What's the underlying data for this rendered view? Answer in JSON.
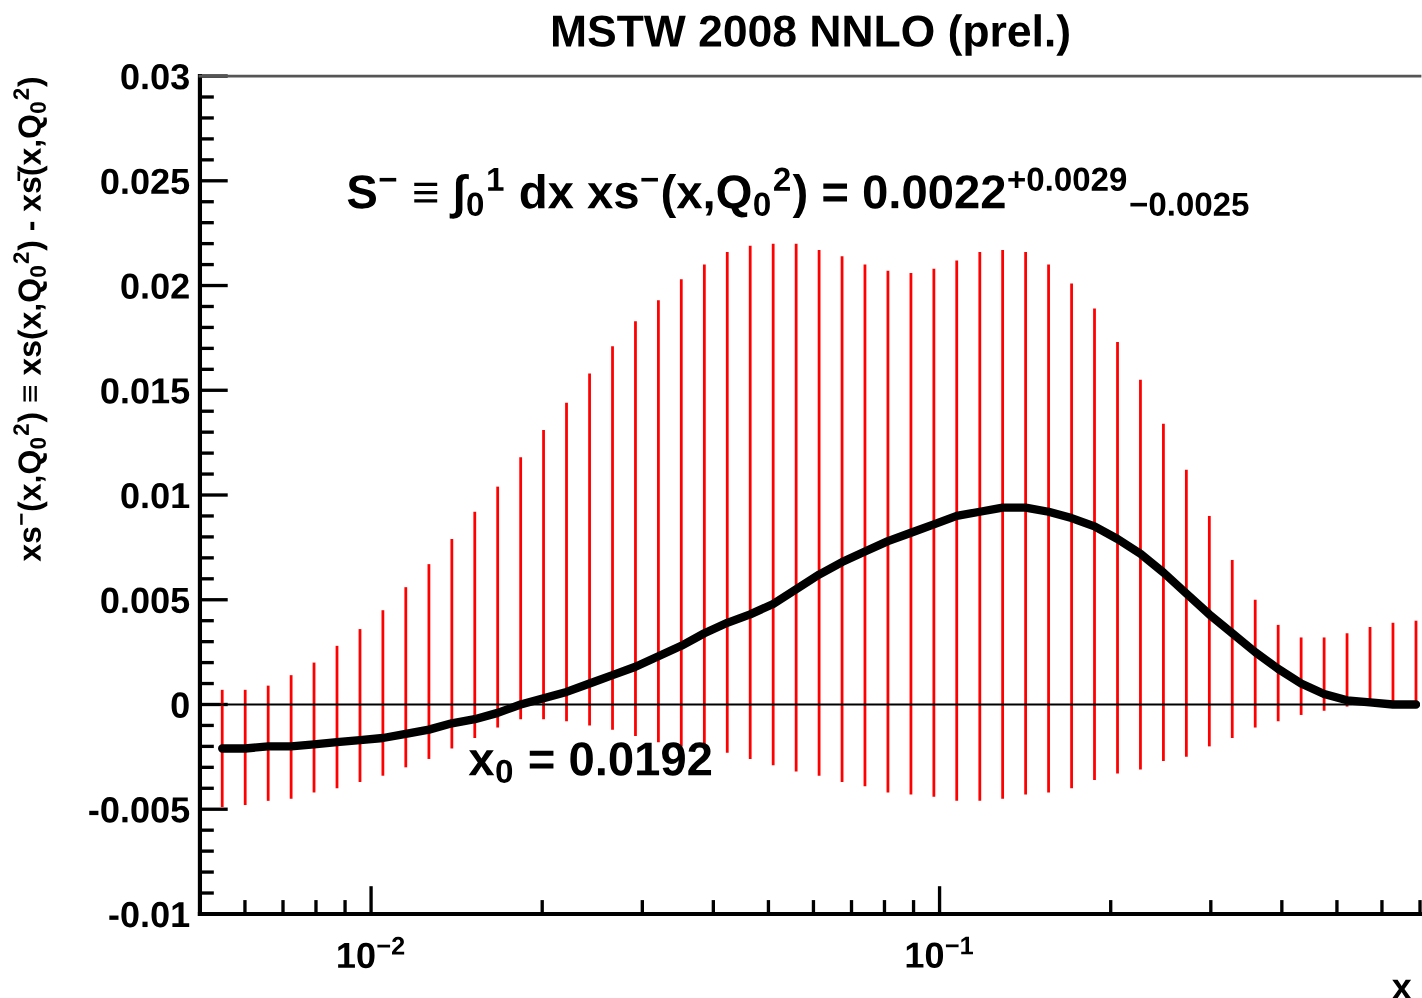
{
  "chart_data": {
    "type": "line",
    "title": "MSTW 2008 NNLO (prel.)",
    "xlabel": "x",
    "ylabel": "xs$^{−}$(x,Q$_{0}$$^{2}$) ≡ xs(x,Q$_{0}$$^{2}$) - xs̄(x,Q$_{0}$$^{2}$)",
    "annotations": [
      "S$^{−}$ ≡ ∫$_{0}$$^{1}$ dx xs$^{−}$(x,Q$_{0}$$^{2}$) = 0.0022$^{+0.0029}$$_{−0.0025}$",
      "x$_{0}$ = 0.0192"
    ],
    "log": "x",
    "xlim": [
      0.005,
      0.7
    ],
    "xticks": [
      {
        "value": 0.01,
        "label": "10$^{−2}$"
      },
      {
        "value": 0.1,
        "label": "10$^{−1}$"
      }
    ],
    "ylim": [
      -0.01,
      0.03
    ],
    "yticks": [
      -0.01,
      -0.005,
      0,
      0.005,
      0.01,
      0.015,
      0.02,
      0.025,
      0.03
    ],
    "grid": false,
    "marker": "none",
    "line_style": "solid",
    "ref_lines": [
      {
        "axis": "y",
        "value": 0,
        "color": "#000000"
      }
    ],
    "x": [
      0.005472,
      0.006006,
      0.006592,
      0.007234,
      0.007937,
      0.008711,
      0.009561,
      0.01049,
      0.01151,
      0.01264,
      0.01387,
      0.01522,
      0.0167,
      0.01833,
      0.02011,
      0.02207,
      0.02423,
      0.02659,
      0.02918,
      0.03202,
      0.03513,
      0.03857,
      0.04232,
      0.04644,
      0.05097,
      0.05594,
      0.06139,
      0.06737,
      0.07392,
      0.08113,
      0.08905,
      0.09772,
      0.1072,
      0.1177,
      0.1291,
      0.1417,
      0.1555,
      0.1707,
      0.1873,
      0.2056,
      0.2256,
      0.2476,
      0.2717,
      0.2982,
      0.3272,
      0.3591,
      0.3941,
      0.4325,
      0.4747,
      0.5209,
      0.5717,
      0.6274,
      0.6887
    ],
    "series": [
      {
        "color": "#000000",
        "values": [
          -0.0021,
          -0.0021,
          -0.002,
          -0.002,
          -0.0019,
          -0.0018,
          -0.0017,
          -0.0016,
          -0.0014,
          -0.0012,
          -0.0009,
          -0.0007,
          -0.0004,
          0.0,
          0.0003,
          0.0006,
          0.001,
          0.0014,
          0.0018,
          0.0023,
          0.0028,
          0.0034,
          0.0039,
          0.0043,
          0.0048,
          0.0055,
          0.0062,
          0.0068,
          0.0073,
          0.0078,
          0.0082,
          0.0086,
          0.009,
          0.0092,
          0.0094,
          0.0094,
          0.0092,
          0.0089,
          0.0085,
          0.0079,
          0.0072,
          0.0063,
          0.0053,
          0.0043,
          0.0034,
          0.0025,
          0.0017,
          0.001,
          0.0005,
          0.0002,
          0.0001,
          0.0,
          0.0
        ],
        "errors": [
          [
            -0.0049,
            0.0007
          ],
          [
            -0.0048,
            0.0007
          ],
          [
            -0.0046,
            0.0009
          ],
          [
            -0.0045,
            0.0014
          ],
          [
            -0.0042,
            0.002
          ],
          [
            -0.004,
            0.0028
          ],
          [
            -0.0037,
            0.0036
          ],
          [
            -0.0034,
            0.0045
          ],
          [
            -0.003,
            0.0056
          ],
          [
            -0.0026,
            0.0067
          ],
          [
            -0.0021,
            0.0079
          ],
          [
            -0.0016,
            0.0092
          ],
          [
            -0.0011,
            0.0104
          ],
          [
            -0.0007,
            0.0118
          ],
          [
            -0.0007,
            0.0131
          ],
          [
            -0.0008,
            0.0144
          ],
          [
            -0.001,
            0.0158
          ],
          [
            -0.0012,
            0.0171
          ],
          [
            -0.0015,
            0.0183
          ],
          [
            -0.0018,
            0.0193
          ],
          [
            -0.002,
            0.0203
          ],
          [
            -0.0021,
            0.021
          ],
          [
            -0.0023,
            0.0216
          ],
          [
            -0.0026,
            0.0219
          ],
          [
            -0.0029,
            0.022
          ],
          [
            -0.0032,
            0.022
          ],
          [
            -0.0034,
            0.0217
          ],
          [
            -0.0037,
            0.0214
          ],
          [
            -0.0039,
            0.021
          ],
          [
            -0.0042,
            0.0207
          ],
          [
            -0.0043,
            0.0206
          ],
          [
            -0.0044,
            0.0208
          ],
          [
            -0.0046,
            0.0212
          ],
          [
            -0.0046,
            0.0216
          ],
          [
            -0.0045,
            0.0217
          ],
          [
            -0.0043,
            0.0216
          ],
          [
            -0.0042,
            0.021
          ],
          [
            -0.004,
            0.0201
          ],
          [
            -0.0036,
            0.0189
          ],
          [
            -0.0033,
            0.0173
          ],
          [
            -0.0031,
            0.0155
          ],
          [
            -0.0027,
            0.0134
          ],
          [
            -0.0025,
            0.0112
          ],
          [
            -0.002,
            0.009
          ],
          [
            -0.0016,
            0.0069
          ],
          [
            -0.0011,
            0.005
          ],
          [
            -0.0008,
            0.0038
          ],
          [
            -0.0005,
            0.0032
          ],
          [
            -0.0003,
            0.0032
          ],
          [
            -0.0001,
            0.0034
          ],
          [
            0.0,
            0.0037
          ],
          [
            0.0,
            0.0039
          ],
          [
            0.0,
            0.004
          ]
        ]
      }
    ]
  }
}
